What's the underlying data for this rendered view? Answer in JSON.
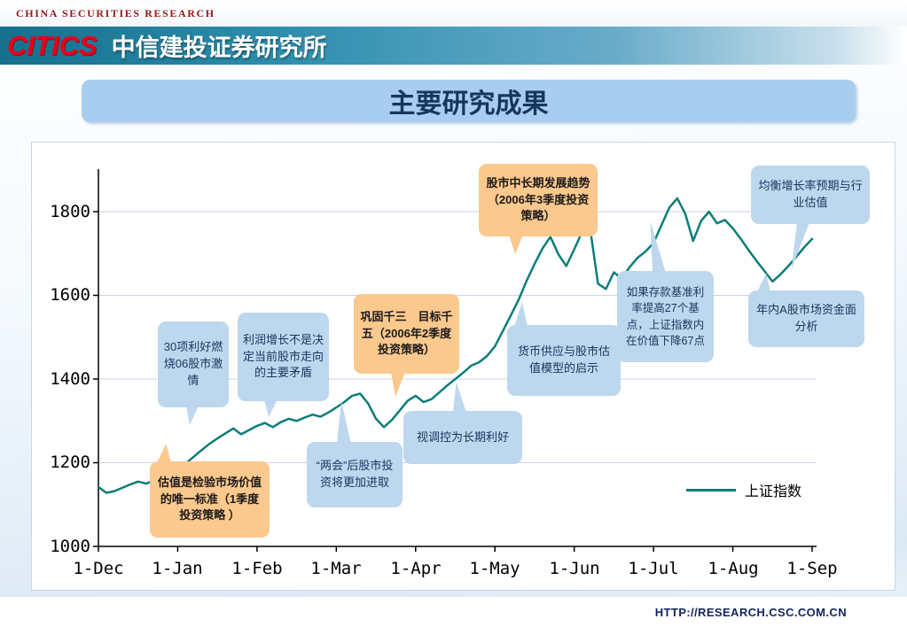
{
  "header": {
    "eyebrow": "CHINA SECURITIES RESEARCH",
    "logo": "CITICS",
    "org_name": "中信建投证券研究所"
  },
  "title": "主要研究成果",
  "footer": {
    "url": "HTTP://RESEARCH.CSC.COM.CN"
  },
  "colors": {
    "line_teal": "#0c7d78",
    "callout_blue": "#bdd7ee",
    "callout_orange": "#fbc88d",
    "banner_blue": "#a9cdee",
    "logo_red": "#e8001c",
    "header_teal": "#15708d"
  },
  "chart_data": {
    "type": "line",
    "title": "",
    "xlabel": "",
    "ylabel": "",
    "x_labels": [
      "1-Dec",
      "1-Jan",
      "1-Feb",
      "1-Mar",
      "1-Apr",
      "1-May",
      "1-Jun",
      "1-Jul",
      "1-Aug",
      "1-Sep"
    ],
    "ylim": [
      1000,
      1800
    ],
    "yticks": [
      1000,
      1200,
      1400,
      1600,
      1800
    ],
    "grid": true,
    "grid_color": "#c9d5e0",
    "legend_position": "right-middle",
    "series": [
      {
        "name": "上证指数",
        "color": "#0c7d78",
        "values": [
          1142,
          1128,
          1132,
          1140,
          1148,
          1155,
          1150,
          1157,
          1162,
          1170,
          1182,
          1198,
          1214,
          1230,
          1245,
          1258,
          1270,
          1282,
          1268,
          1278,
          1288,
          1295,
          1285,
          1297,
          1305,
          1300,
          1308,
          1315,
          1310,
          1320,
          1332,
          1345,
          1360,
          1365,
          1342,
          1305,
          1285,
          1302,
          1325,
          1348,
          1360,
          1345,
          1352,
          1368,
          1385,
          1400,
          1415,
          1432,
          1440,
          1455,
          1478,
          1515,
          1552,
          1590,
          1635,
          1675,
          1712,
          1740,
          1698,
          1670,
          1710,
          1752,
          1760,
          1628,
          1615,
          1655,
          1640,
          1668,
          1690,
          1705,
          1725,
          1768,
          1810,
          1832,
          1795,
          1730,
          1778,
          1800,
          1772,
          1780,
          1760,
          1735,
          1708,
          1682,
          1658,
          1633,
          1650,
          1670,
          1692,
          1715,
          1735
        ]
      }
    ]
  },
  "annotations": [
    {
      "name": "30-good-news",
      "style": "blue",
      "text": "30项利好燃烧06股市激情"
    },
    {
      "name": "profit-growth",
      "style": "blue",
      "text": "利润增长不是决定当前股市走向的主要矛盾"
    },
    {
      "name": "q2-strategy",
      "style": "orange",
      "text": "巩固千三　目标千五（2006年2季度投资策略）"
    },
    {
      "name": "q3-strategy",
      "style": "orange",
      "text": "股市中长期发展趋势（2006年3季度投资策略）"
    },
    {
      "name": "balanced-growth",
      "style": "blue",
      "text": "均衡增长率预期与行业估值"
    },
    {
      "name": "rate-hike",
      "style": "blue",
      "text": "如果存款基准利率提高27个基点，上证指数内在价值下降67点"
    },
    {
      "name": "funds-analysis",
      "style": "blue",
      "text": "年内A股市场资金面分析"
    },
    {
      "name": "money-supply",
      "style": "blue",
      "text": "货币供应与股市估值模型的启示"
    },
    {
      "name": "regulation",
      "style": "blue",
      "text": "视调控为长期利好"
    },
    {
      "name": "lianghui",
      "style": "blue",
      "text": "“两会”后股市投资将更加进取"
    },
    {
      "name": "q1-strategy",
      "style": "orange",
      "text": "估值是检验市场价值的唯一标准（1季度投资策略 ）"
    }
  ]
}
